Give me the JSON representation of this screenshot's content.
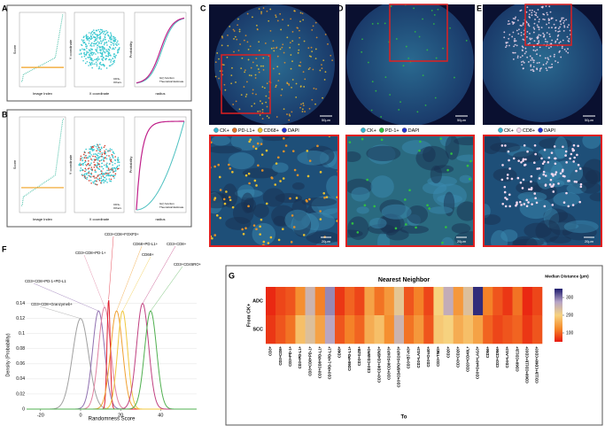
{
  "panel_labels": [
    "A",
    "B",
    "C",
    "D",
    "E",
    "F",
    "G"
  ],
  "panels": {
    "a": {
      "plot1": {
        "x_label": "Image Index",
        "y_label": "Score"
      },
      "plot2": {
        "x_label": "X coordinate",
        "y_label": "Y coordinate",
        "legend": [
          "CD3+",
          "Others"
        ]
      },
      "plot3": {
        "x_label": "radius",
        "y_label": "Probability",
        "legend": [
          "G(r) function",
          "Theoretical Estimate"
        ]
      }
    },
    "b": {
      "plot1": {
        "x_label": "Image Index",
        "y_label": "Score"
      },
      "plot2": {
        "x_label": "X coordinate",
        "y_label": "Y coordinate",
        "legend": [
          "CD3+",
          "Others"
        ]
      },
      "plot3": {
        "x_label": "radius",
        "y_label": "Probability",
        "legend": [
          "G(r) function",
          "Theoretical Estimate"
        ]
      }
    },
    "c": {
      "legend": [
        {
          "name": "CK+",
          "color": "#35b5d0"
        },
        {
          "name": "PD-L1+",
          "color": "#e0702a"
        },
        {
          "name": "CD68+",
          "color": "#e8c030"
        },
        {
          "name": "DAPI",
          "color": "#2233cc"
        }
      ],
      "scale_top": "50µm",
      "scale_bottom": "20µm"
    },
    "d": {
      "legend": [
        {
          "name": "CK+",
          "color": "#35b5d0"
        },
        {
          "name": "PD-1+",
          "color": "#30c040"
        },
        {
          "name": "DAPI",
          "color": "#2233cc"
        }
      ],
      "scale_top": "50µm",
      "scale_bottom": "20µm"
    },
    "e": {
      "legend": [
        {
          "name": "CK+",
          "color": "#35b5d0"
        },
        {
          "name": "CD8+",
          "color": "#f4d8ee"
        },
        {
          "name": "DAPI",
          "color": "#2233cc"
        }
      ],
      "scale_top": "50µm",
      "scale_bottom": "20µm"
    }
  },
  "chart_data": [
    {
      "type": "density",
      "x_label": "Randomness Score",
      "y_label": "Density (Probability)",
      "xlim": [
        -27,
        58
      ],
      "ylim": [
        0,
        0.19
      ],
      "xticks": [
        -20,
        0,
        20,
        40
      ],
      "yticks": [
        0,
        0.02,
        0.04,
        0.06,
        0.08,
        0.1,
        0.12,
        0.14
      ],
      "series": [
        {
          "name": "CD3+CD8+Granzymeb+",
          "color": "#a0a0a0",
          "mean": 0,
          "sd": 4,
          "peak": 0.12
        },
        {
          "name": "CD3+CD8+PD-1+PD-L1",
          "color": "#9070b0",
          "mean": 9,
          "sd": 3,
          "peak": 0.13
        },
        {
          "name": "CD3+CD8+PD-1+",
          "color": "#e080a0",
          "mean": 12,
          "sd": 3,
          "peak": 0.135
        },
        {
          "name": "CD3+CD8+FOXP3+",
          "color": "#e02030",
          "mean": 14,
          "sd": 0.8,
          "peak": 0.145
        },
        {
          "name": "CD68+PD-L1+",
          "color": "#f0a030",
          "mean": 18,
          "sd": 3,
          "peak": 0.13
        },
        {
          "name": "CD68+",
          "color": "#f0c840",
          "mean": 21,
          "sd": 2.5,
          "peak": 0.13
        },
        {
          "name": "CD3+CD8+",
          "color": "#c04080",
          "mean": 31,
          "sd": 3,
          "peak": 0.14
        },
        {
          "name": "CD3+CD45RO+",
          "color": "#50b050",
          "mean": 35,
          "sd": 3,
          "peak": 0.13
        }
      ]
    },
    {
      "type": "heatmap",
      "title": "Nearest Neighbor",
      "x_label": "To",
      "y_label": "From CK+",
      "colorbar_title": "Median Distance (µm)",
      "colorbar_lim": [
        50,
        350
      ],
      "colorbar_ticks": [
        100,
        200,
        300
      ],
      "colormap": [
        "#e8190e",
        "#f58a2a",
        "#f6d27f",
        "#b5a3c6",
        "#1d1a6e"
      ],
      "rows": [
        "ADC",
        "SCC"
      ],
      "columns": [
        "CD3+",
        "CD3+CD8+",
        "CD3+PD-1+",
        "CD3+PD-L1+",
        "CD3+CD8+PD-1+",
        "CD3+CD8+PD-L1+",
        "CD3+PD-1+PD-L1+",
        "CD68+",
        "CD68+PD-L1+",
        "CD3+GZB+",
        "CD3+CD45RO+",
        "CD3+CD8+CD45RO+",
        "CD3+CD8+FOXP3+",
        "CD3+CD45RO+FOXP3+",
        "CD3+B7-H3+",
        "CD3+LAG3+",
        "CD3+Ox40+",
        "CD3+TIM3+",
        "CD20+",
        "CD3+CD20+",
        "CD20+CD40L+",
        "CD3+Ox40+LAG3+",
        "CD56+",
        "CD3+CD56+",
        "CD4+LAG3+",
        "CD68+CD11b+",
        "CD68+CD11b+CD33+",
        "CD11b+CD68+CD33+"
      ],
      "values": [
        [
          60,
          80,
          90,
          130,
          250,
          120,
          290,
          70,
          100,
          80,
          150,
          110,
          140,
          220,
          90,
          120,
          80,
          200,
          260,
          140,
          230,
          340,
          120,
          90,
          70,
          110,
          60,
          80
        ],
        [
          70,
          90,
          110,
          180,
          230,
          150,
          270,
          90,
          120,
          100,
          160,
          180,
          130,
          250,
          110,
          140,
          90,
          190,
          200,
          160,
          180,
          150,
          100,
          80,
          90,
          100,
          70,
          90
        ]
      ]
    }
  ]
}
